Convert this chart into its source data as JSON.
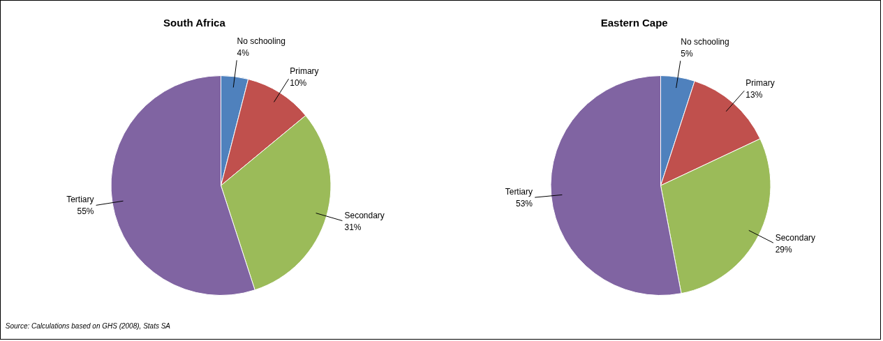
{
  "chart_data": [
    {
      "type": "pie",
      "title": "South Africa",
      "categories": [
        "No schooling",
        "Primary",
        "Secondary",
        "Tertiary"
      ],
      "values": [
        4,
        10,
        31,
        55
      ],
      "value_labels": [
        "4%",
        "10%",
        "31%",
        "55%"
      ],
      "colors": [
        "#4f81bd",
        "#c0504d",
        "#9bbb59",
        "#8064a2"
      ],
      "annotations": [
        "Source: Calculations based on GHS (2008), Stats SA"
      ]
    },
    {
      "type": "pie",
      "title": "Eastern Cape",
      "categories": [
        "No schooling",
        "Primary",
        "Secondary",
        "Tertiary"
      ],
      "values": [
        5,
        13,
        29,
        53
      ],
      "value_labels": [
        "5%",
        "13%",
        "29%",
        "53%"
      ],
      "colors": [
        "#4f81bd",
        "#c0504d",
        "#9bbb59",
        "#8064a2"
      ]
    }
  ]
}
